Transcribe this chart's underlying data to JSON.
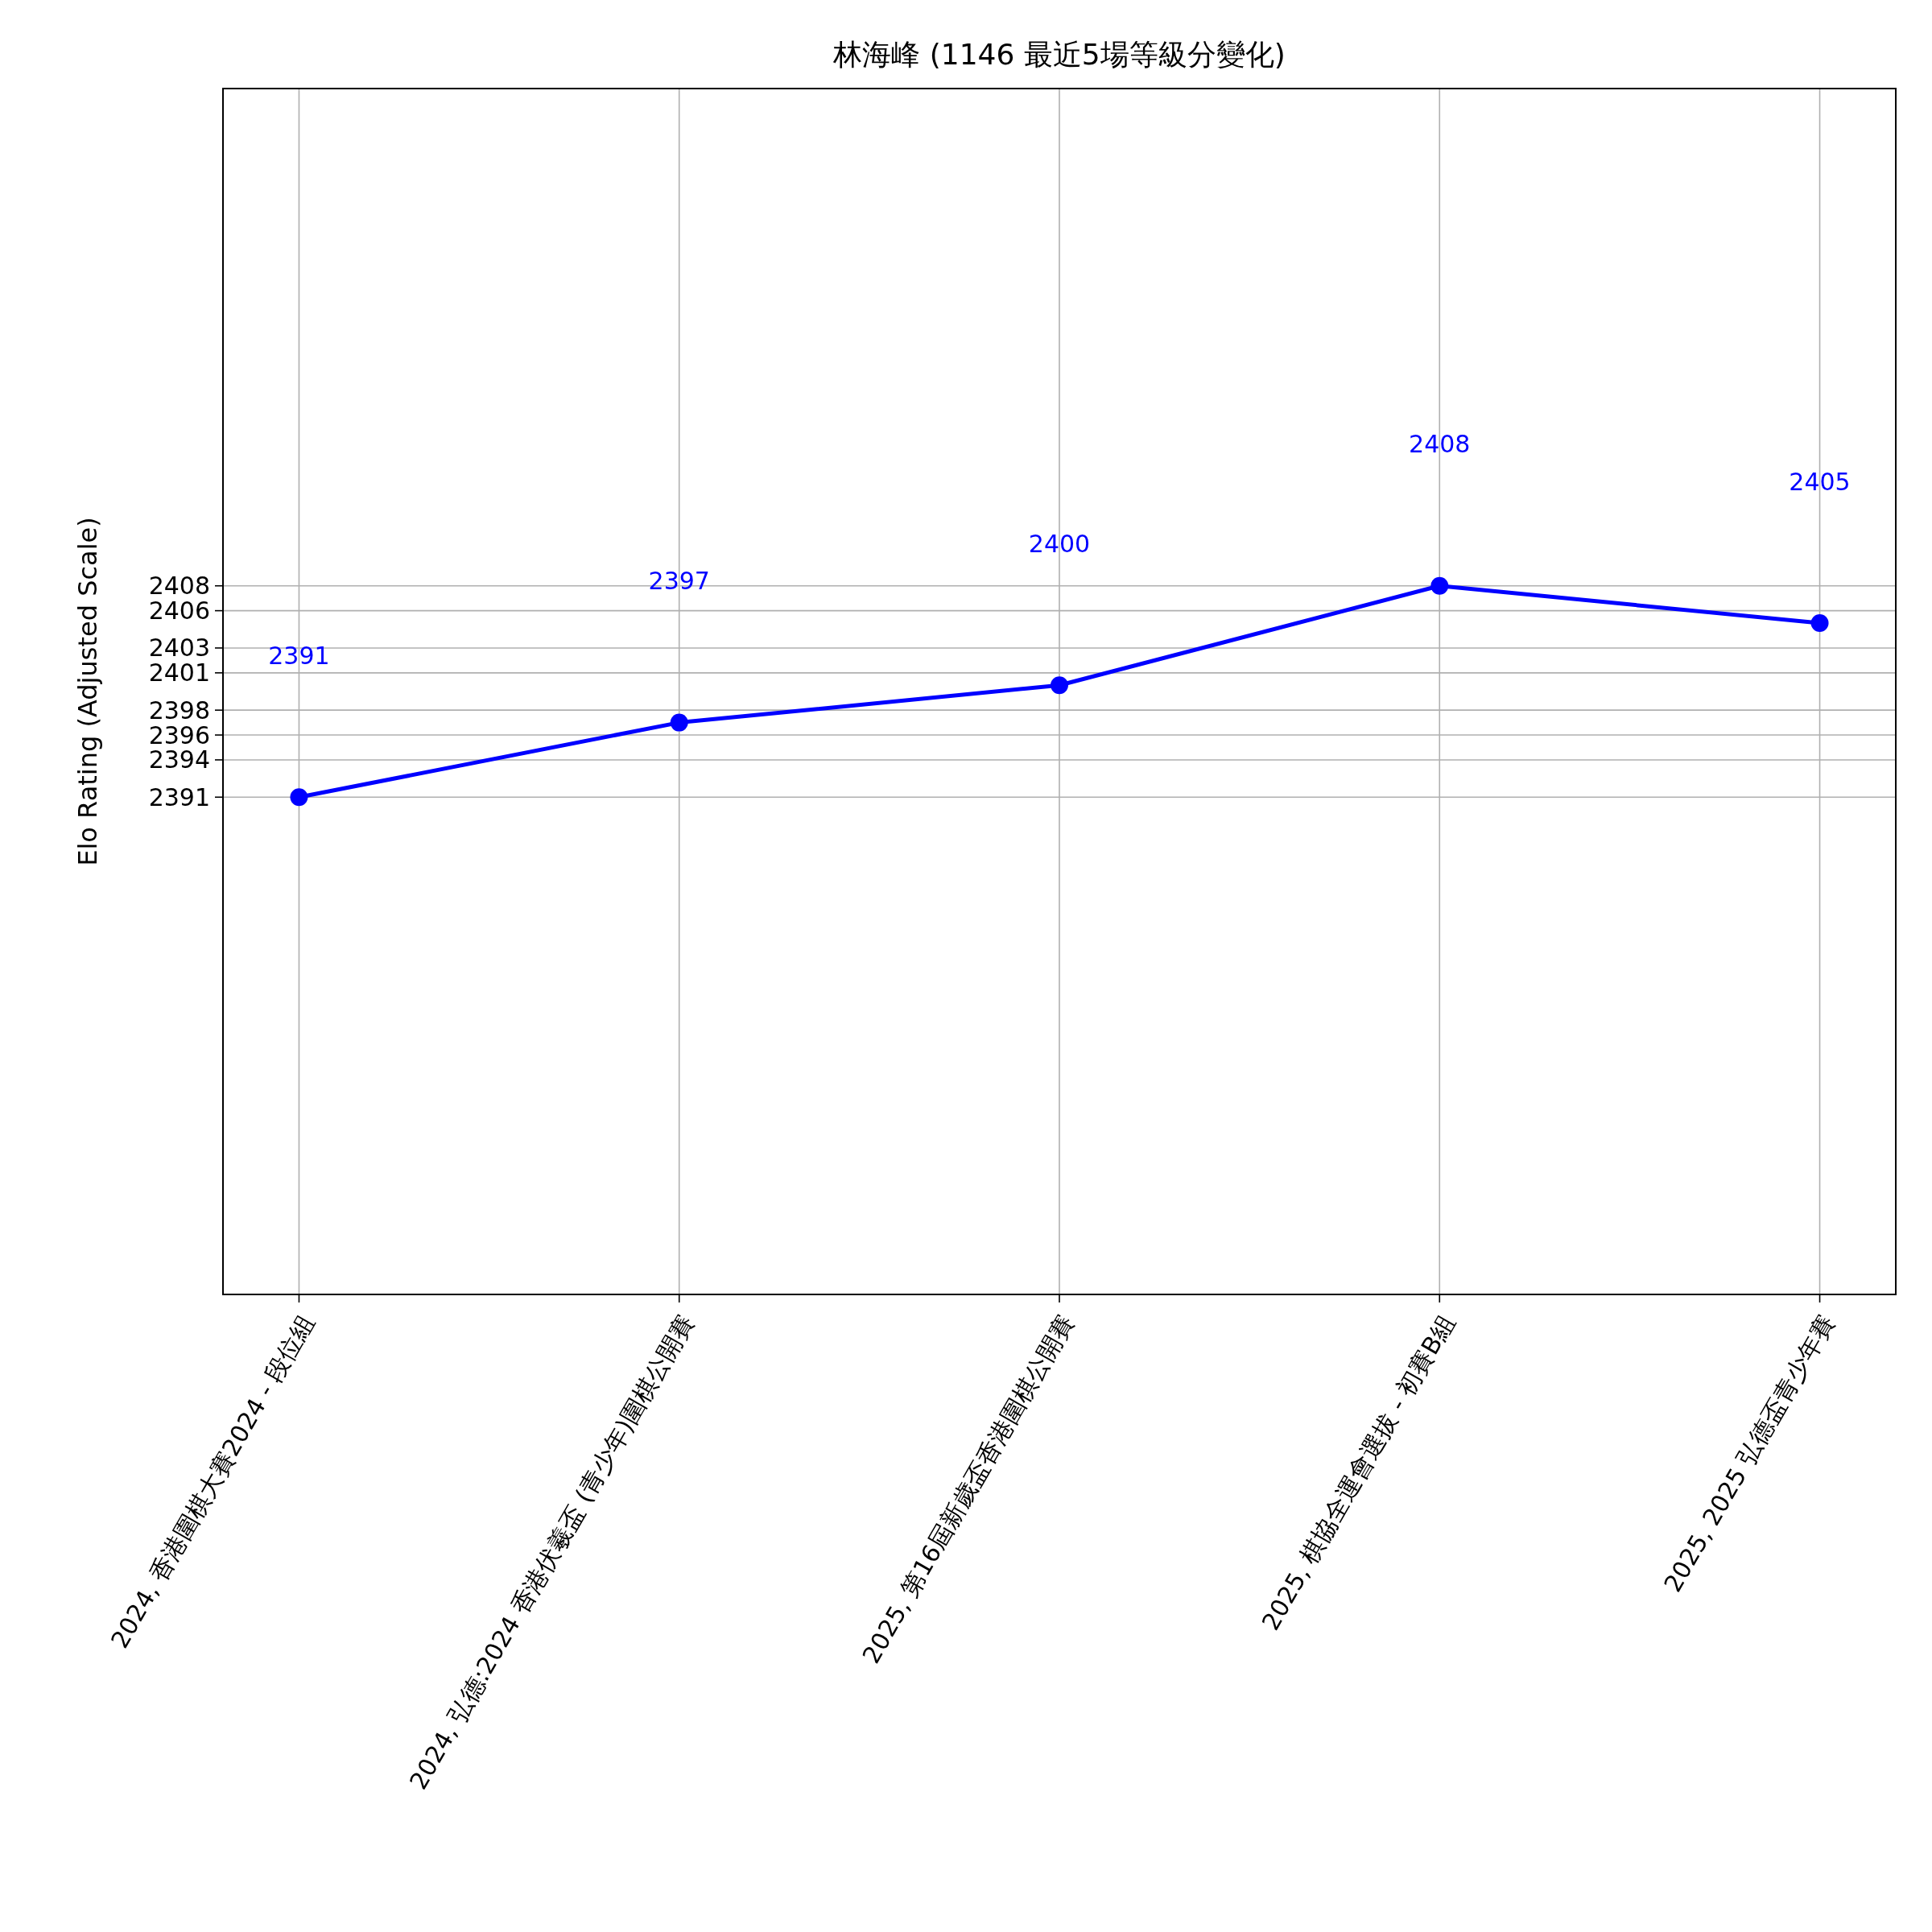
{
  "chart_data": {
    "type": "line",
    "title": "林海峰 (1146 最近5場等級分變化)",
    "ylabel": "Elo Rating (Adjusted Scale)",
    "categories": [
      "2024, 香港圍棋大賽2024 - 段位組",
      "2024, 弘德:2024 香港伏羲盃 (青少年)圍棋公開賽",
      "2025, 第16屆新歲盃香港圍棋公開賽",
      "2025, 棋協全運會選拔 - 初賽B組",
      "2025, 2025 弘德盃青少年賽"
    ],
    "series": [
      {
        "color": "#0000ff",
        "values": [
          2391,
          2397,
          2400,
          2408,
          2405
        ]
      }
    ],
    "ylim": [
      2351,
      2448
    ],
    "yticks": [
      2391,
      2394,
      2396,
      2398,
      2401,
      2403,
      2406,
      2408
    ],
    "annotations": [
      "2391",
      "2397",
      "2400",
      "2408",
      "2405"
    ],
    "grid": true,
    "marker": "circle",
    "line_style": "solid"
  }
}
